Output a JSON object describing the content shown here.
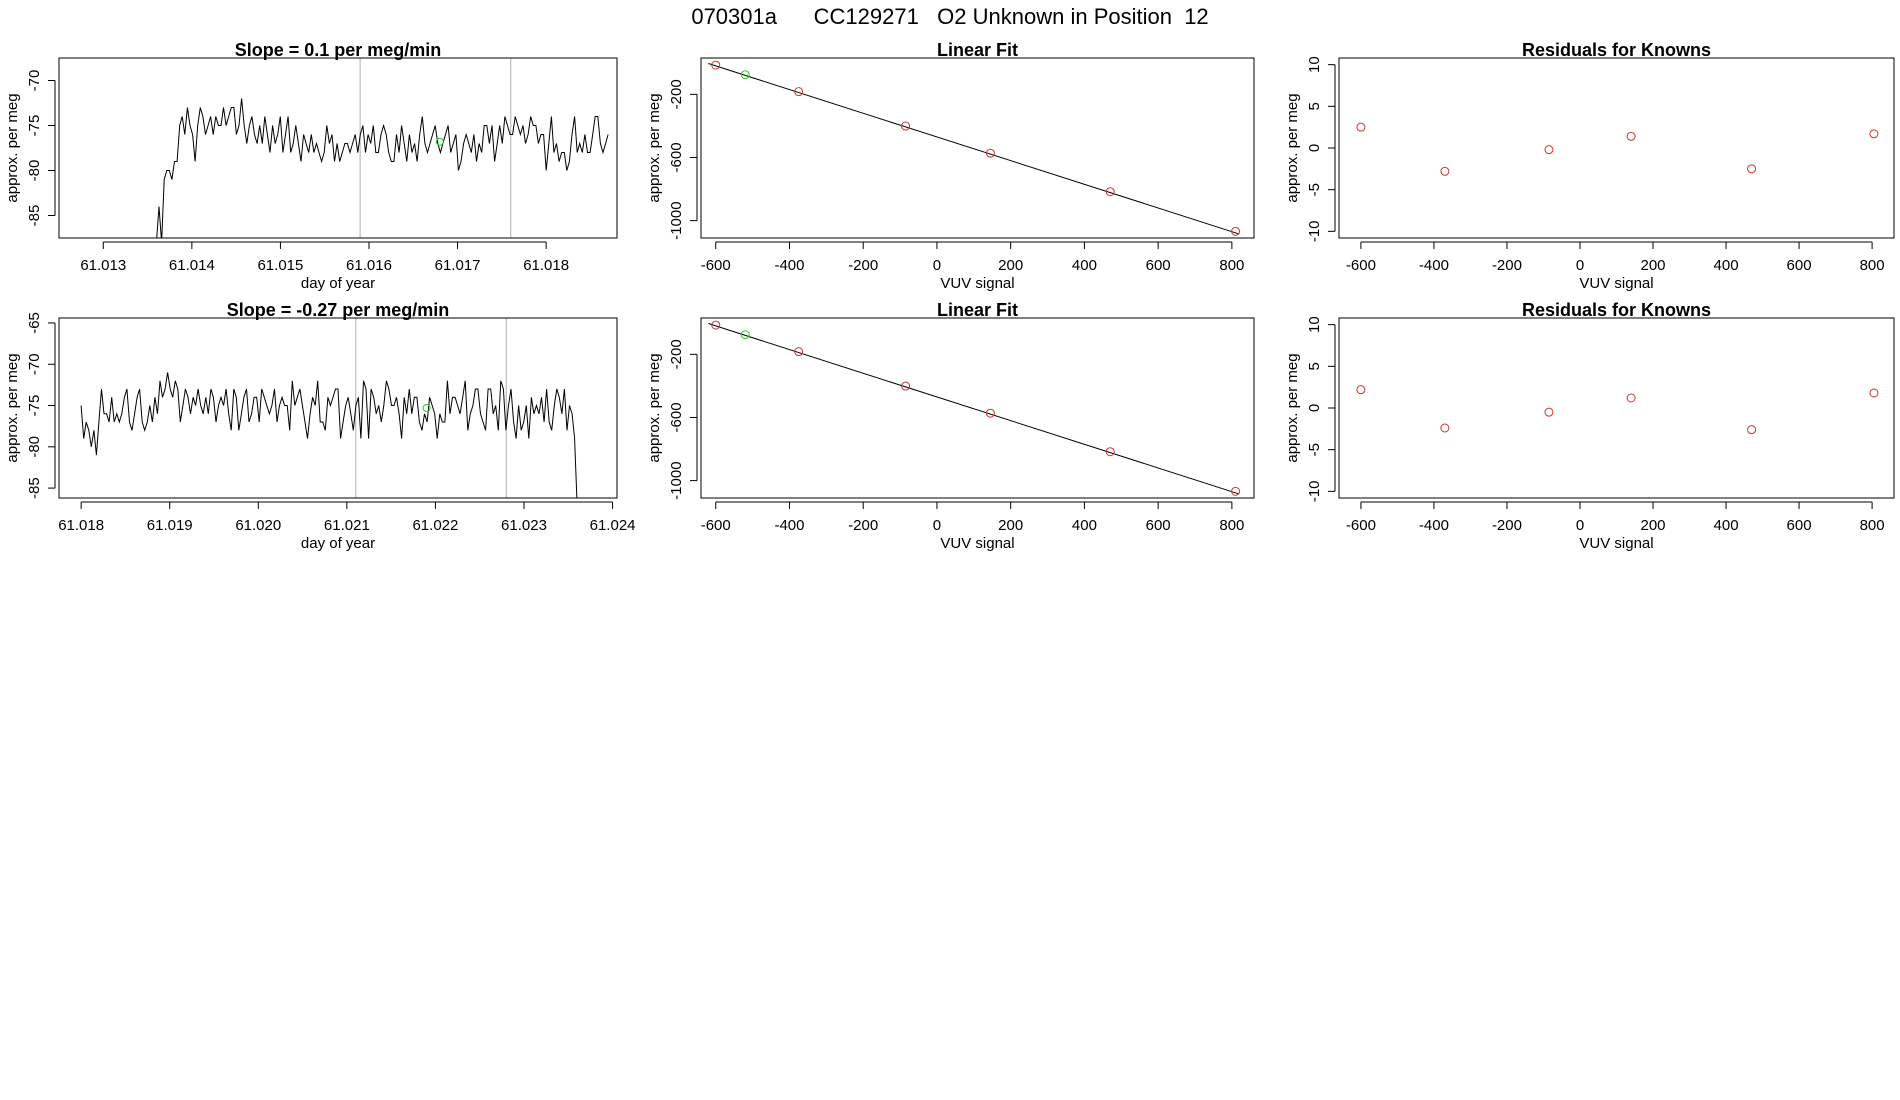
{
  "page_title": "070301a      CC129271   O2 Unknown in Position  12",
  "colors": {
    "line": "#000000",
    "known": "#cd3333",
    "unknown": "#22cc22",
    "vline": "#bebebe"
  },
  "chart_data": [
    {
      "id": "ts1",
      "type": "line",
      "title": "Slope =  0.1  per meg/min",
      "xlabel": "day of year",
      "ylabel": "approx. per meg",
      "xlim": [
        61.0125,
        61.0188
      ],
      "ylim": [
        -87.5,
        -67.5
      ],
      "xticks": [
        "61.013",
        "61.014",
        "61.015",
        "61.016",
        "61.017",
        "61.018"
      ],
      "xtick_values": [
        61.013,
        61.014,
        61.015,
        61.016,
        61.017,
        61.018
      ],
      "yticks": [
        "-85",
        "-80",
        "-75",
        "-70"
      ],
      "ytick_values": [
        -85,
        -80,
        -75,
        -70
      ],
      "vlines": [
        61.0159,
        61.0176
      ],
      "highlight": {
        "x": 61.0168,
        "y": -76.8,
        "label": "unknown sample"
      },
      "series": {
        "x_start": 61.0136,
        "x_end": 61.0187,
        "values": [
          -88,
          -84,
          -88,
          -81,
          -80,
          -80,
          -81,
          -79,
          -79,
          -75,
          -74,
          -76,
          -73,
          -75,
          -76,
          -79,
          -75,
          -73,
          -74,
          -76,
          -75,
          -74,
          -76,
          -74,
          -75,
          -75,
          -73,
          -75,
          -74,
          -73,
          -73,
          -76,
          -75,
          -72,
          -75,
          -77,
          -75,
          -74,
          -76,
          -77,
          -75,
          -77,
          -74,
          -76,
          -78,
          -75,
          -77,
          -76,
          -74,
          -78,
          -76,
          -74,
          -78,
          -77,
          -75,
          -77,
          -79,
          -76,
          -77,
          -78,
          -76,
          -78,
          -77,
          -78,
          -79,
          -78,
          -75,
          -77,
          -76,
          -79,
          -77,
          -79,
          -78,
          -77,
          -77,
          -78,
          -77,
          -76,
          -78,
          -76,
          -75,
          -78,
          -76,
          -77,
          -75,
          -78,
          -78,
          -76,
          -75,
          -76,
          -78,
          -79,
          -79,
          -76,
          -78,
          -75,
          -77,
          -79,
          -76,
          -78,
          -77,
          -79,
          -76,
          -74,
          -77,
          -78,
          -77,
          -76,
          -75,
          -77,
          -78,
          -77,
          -76,
          -75,
          -78,
          -77,
          -76,
          -80,
          -79,
          -77,
          -76,
          -77,
          -78,
          -76,
          -79,
          -77,
          -78,
          -75,
          -75,
          -77,
          -75,
          -79,
          -77,
          -75,
          -77,
          -74,
          -75,
          -76,
          -76,
          -74,
          -75,
          -76,
          -75,
          -77,
          -76,
          -74,
          -75,
          -75,
          -77,
          -76,
          -76,
          -80,
          -77,
          -74,
          -78,
          -77,
          -79,
          -78,
          -78,
          -80,
          -79,
          -76,
          -74,
          -78,
          -77,
          -78,
          -76,
          -78,
          -78,
          -76,
          -74,
          -74,
          -77,
          -78,
          -77,
          -76
        ]
      }
    },
    {
      "id": "fit1",
      "type": "scatter",
      "title": "Linear Fit",
      "xlabel": "VUV signal",
      "ylabel": "approx. per meg",
      "xlim": [
        -640,
        860
      ],
      "ylim": [
        -1110,
        30
      ],
      "xticks": [
        "-600",
        "-400",
        "-200",
        "0",
        "200",
        "400",
        "600",
        "800"
      ],
      "xtick_values": [
        -600,
        -400,
        -200,
        0,
        200,
        400,
        600,
        800
      ],
      "yticks": [
        "-1000",
        "-600",
        "-200"
      ],
      "ytick_values": [
        -1000,
        -600,
        -200
      ],
      "fit_line": {
        "x": [
          -620,
          820
        ],
        "y": [
          -5,
          -1085
        ]
      },
      "knowns": {
        "x": [
          -600,
          -375,
          -85,
          145,
          470,
          810
        ],
        "y": [
          -15,
          -183,
          -401,
          -573,
          -817,
          -1068
        ]
      },
      "unknown": {
        "x": [
          -520
        ],
        "y": [
          -76
        ]
      }
    },
    {
      "id": "res1",
      "type": "scatter",
      "title": "Residuals for Knowns",
      "xlabel": "VUV signal",
      "ylabel": "approx. per meg",
      "xlim": [
        -660,
        860
      ],
      "ylim": [
        -10.8,
        10.8
      ],
      "xticks": [
        "-600",
        "-400",
        "-200",
        "0",
        "200",
        "400",
        "600",
        "800"
      ],
      "xtick_values": [
        -600,
        -400,
        -200,
        0,
        200,
        400,
        600,
        800
      ],
      "yticks": [
        "-10",
        "-5",
        "0",
        "5",
        "10"
      ],
      "ytick_values": [
        -10,
        -5,
        0,
        5,
        10
      ],
      "knowns": {
        "x": [
          -600,
          -370,
          -85,
          140,
          470,
          805
        ],
        "y": [
          2.5,
          -2.8,
          -0.2,
          1.4,
          -2.5,
          1.7
        ]
      }
    },
    {
      "id": "ts2",
      "type": "line",
      "title": "Slope =  -0.27  per meg/min",
      "xlabel": "day of year",
      "ylabel": "approx. per meg",
      "xlim": [
        61.01775,
        61.02405
      ],
      "ylim": [
        -86.2,
        -64.4
      ],
      "xticks": [
        "61.018",
        "61.019",
        "61.020",
        "61.021",
        "61.022",
        "61.023",
        "61.024"
      ],
      "xtick_values": [
        61.018,
        61.019,
        61.02,
        61.021,
        61.022,
        61.023,
        61.024
      ],
      "yticks": [
        "-85",
        "-80",
        "-75",
        "-70",
        "-65"
      ],
      "ytick_values": [
        -85,
        -80,
        -75,
        -70,
        -65
      ],
      "vlines": [
        61.0211,
        61.0228
      ],
      "highlight": {
        "x": 61.0219,
        "y": -75.3,
        "label": "unknown sample"
      },
      "series": {
        "x_start": 61.018,
        "x_end": 61.0236,
        "values": [
          -75,
          -79,
          -77,
          -78,
          -80,
          -78,
          -81,
          -77,
          -73,
          -76,
          -76,
          -77,
          -74,
          -77,
          -76,
          -77,
          -76,
          -74,
          -73,
          -77,
          -78,
          -76,
          -74,
          -73,
          -77,
          -78,
          -77,
          -75,
          -77,
          -74,
          -76,
          -72,
          -74,
          -73,
          -71,
          -73,
          -74,
          -72,
          -73,
          -77,
          -75,
          -73,
          -74,
          -76,
          -74,
          -75,
          -73,
          -75,
          -76,
          -74,
          -76,
          -73,
          -74,
          -77,
          -75,
          -74,
          -75,
          -73,
          -76,
          -78,
          -73,
          -74,
          -78,
          -76,
          -74,
          -73,
          -77,
          -76,
          -74,
          -74,
          -77,
          -73,
          -74,
          -75,
          -76,
          -75,
          -73,
          -77,
          -75,
          -74,
          -75,
          -75,
          -78,
          -72,
          -75,
          -74,
          -73,
          -75,
          -77,
          -79,
          -76,
          -74,
          -75,
          -72,
          -77,
          -77,
          -78,
          -74,
          -75,
          -74,
          -73,
          -73,
          -79,
          -77,
          -75,
          -74,
          -76,
          -78,
          -75,
          -74,
          -79,
          -72,
          -73,
          -79,
          -73,
          -74,
          -76,
          -75,
          -77,
          -75,
          -72,
          -73,
          -75,
          -75,
          -74,
          -76,
          -79,
          -74,
          -76,
          -73,
          -76,
          -74,
          -74,
          -77,
          -78,
          -76,
          -77,
          -74,
          -75,
          -76,
          -79,
          -76,
          -77,
          -77,
          -72,
          -76,
          -74,
          -74,
          -75,
          -76,
          -74,
          -72,
          -78,
          -76,
          -75,
          -73,
          -73,
          -76,
          -77,
          -78,
          -73,
          -73,
          -76,
          -75,
          -78,
          -72,
          -73,
          -78,
          -75,
          -73,
          -77,
          -79,
          -75,
          -78,
          -77,
          -75,
          -79,
          -74,
          -76,
          -75,
          -76,
          -74,
          -77,
          -73,
          -77,
          -78,
          -75,
          -73,
          -74,
          -76,
          -73,
          -78,
          -75,
          -76,
          -79,
          -87
        ]
      }
    },
    {
      "id": "fit2",
      "type": "scatter",
      "title": "Linear Fit",
      "xlabel": "VUV signal",
      "ylabel": "approx. per meg",
      "xlim": [
        -640,
        860
      ],
      "ylim": [
        -1110,
        30
      ],
      "xticks": [
        "-600",
        "-400",
        "-200",
        "0",
        "200",
        "400",
        "600",
        "800"
      ],
      "xtick_values": [
        -600,
        -400,
        -200,
        0,
        200,
        400,
        600,
        800
      ],
      "yticks": [
        "-1000",
        "-600",
        "-200"
      ],
      "ytick_values": [
        -1000,
        -600,
        -200
      ],
      "fit_line": {
        "x": [
          -620,
          820
        ],
        "y": [
          -5,
          -1085
        ]
      },
      "knowns": {
        "x": [
          -600,
          -375,
          -85,
          145,
          470,
          810
        ],
        "y": [
          -15,
          -183,
          -401,
          -573,
          -817,
          -1068
        ]
      },
      "unknown": {
        "x": [
          -520
        ],
        "y": [
          -76
        ]
      }
    },
    {
      "id": "res2",
      "type": "scatter",
      "title": "Residuals for Knowns",
      "xlabel": "VUV signal",
      "ylabel": "approx. per meg",
      "xlim": [
        -660,
        860
      ],
      "ylim": [
        -10.8,
        10.8
      ],
      "xticks": [
        "-600",
        "-400",
        "-200",
        "0",
        "200",
        "400",
        "600",
        "800"
      ],
      "xtick_values": [
        -600,
        -400,
        -200,
        0,
        200,
        400,
        600,
        800
      ],
      "yticks": [
        "-10",
        "-5",
        "0",
        "5",
        "10"
      ],
      "ytick_values": [
        -10,
        -5,
        0,
        5,
        10
      ],
      "knowns": {
        "x": [
          -600,
          -370,
          -85,
          140,
          470,
          805
        ],
        "y": [
          2.2,
          -2.4,
          -0.5,
          1.2,
          -2.6,
          1.8
        ]
      }
    }
  ]
}
